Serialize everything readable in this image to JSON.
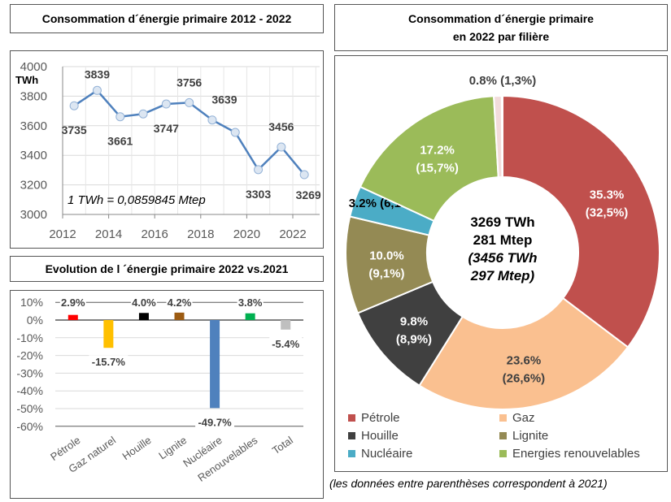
{
  "chart_data": [
    {
      "type": "line",
      "title": "Consommation d´énergie primaire 2012 - 2022",
      "ylabel": "TWh",
      "ylim": [
        3000,
        4000
      ],
      "yticks": [
        3000,
        3200,
        3400,
        3600,
        3800,
        4000
      ],
      "xticks": [
        2012,
        2014,
        2016,
        2018,
        2020,
        2022
      ],
      "grid": true,
      "annotation": "1 TWh = 0,0859845 Mtep",
      "color": "#4f81bd",
      "x": [
        2012,
        2013,
        2014,
        2015,
        2016,
        2017,
        2018,
        2019,
        2020,
        2021,
        2022
      ],
      "values": [
        3735,
        3839,
        3661,
        3680,
        3747,
        3756,
        3639,
        3555,
        3303,
        3456,
        3269
      ],
      "data_labels": [
        "3735",
        "3839",
        "3661",
        "",
        "3747",
        "3756",
        "3639",
        "",
        "3303",
        "3456",
        "3269"
      ]
    },
    {
      "type": "bar",
      "title": "Evolution de l ´énergie primaire 2022 vs.2021",
      "ylim": [
        -60,
        10
      ],
      "yticks": [
        "10%",
        "0%",
        "-10%",
        "-20%",
        "-30%",
        "-40%",
        "-50%",
        "-60%"
      ],
      "grid": true,
      "categories": [
        "Pétrole",
        "Gaz naturel",
        "Houille",
        "Lignite",
        "Nucléaire",
        "Renouvelables",
        "Total"
      ],
      "values": [
        2.9,
        -15.7,
        4.0,
        4.2,
        -49.7,
        3.8,
        -5.4
      ],
      "data_labels": [
        "2.9%",
        "-15.7%",
        "4.0%",
        "4.2%",
        "-49.7%",
        "3.8%",
        "-5.4%"
      ],
      "colors": [
        "#ff0000",
        "#ffc000",
        "#000000",
        "#9c5b12",
        "#4f81bd",
        "#00b050",
        "#bfbfbf"
      ]
    },
    {
      "type": "pie",
      "title": "Consommation d´énergie primaire",
      "subtitle": "en 2022 par filière",
      "legend": "bottom",
      "center_lines": [
        "3269 TWh",
        "281 Mtep",
        "(3456 TWh",
        "297 Mtep)"
      ],
      "slices": [
        {
          "name": "Pétrole",
          "value": 35.3,
          "label": "35.3%",
          "label2": "(32,5%)",
          "color": "#c0504d"
        },
        {
          "name": "Gaz",
          "value": 23.6,
          "label": "23.6%",
          "label2": "(26,6%)",
          "color": "#fac090"
        },
        {
          "name": "Houille",
          "value": 9.8,
          "label": "9.8%",
          "label2": "(8,9%)",
          "color": "#404040"
        },
        {
          "name": "Lignite",
          "value": 10.0,
          "label": "10.0%",
          "label2": "(9,1%)",
          "color": "#948a54"
        },
        {
          "name": "Nucléaire",
          "value": 3.2,
          "label": "3.2% (6,1%)",
          "label2": "",
          "color": "#4bacc6"
        },
        {
          "name": "Energies renouvelables",
          "value": 17.2,
          "label": "17.2%",
          "label2": "(15,7%)",
          "color": "#9bbb59"
        },
        {
          "name": "",
          "value": 0.8,
          "label": "0.8% (1,3%)",
          "label2": "",
          "color": "#f2dcdb"
        }
      ],
      "footnote": "(les données entre parenthèses correspondent à 2021)"
    }
  ]
}
